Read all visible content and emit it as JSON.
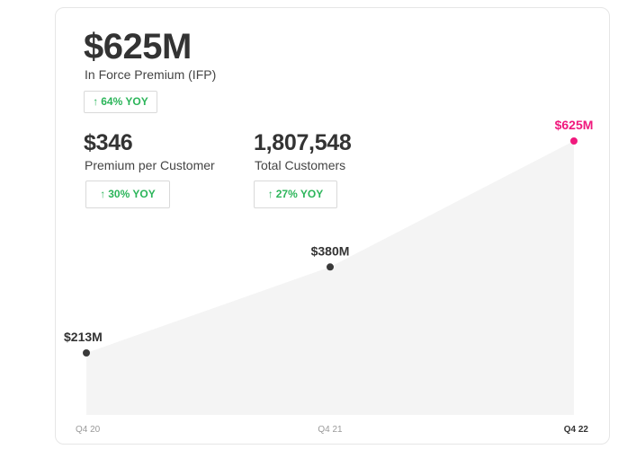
{
  "summary": {
    "ifp": {
      "value": "$625M",
      "label": "In Force Premium (IFP)",
      "change": "64% YOY"
    },
    "premium_per_customer": {
      "value": "$346",
      "label": "Premium per Customer",
      "change": "30% YOY"
    },
    "total_customers": {
      "value": "1,807,548",
      "label": "Total Customers",
      "change": "27% YOY"
    }
  },
  "colors": {
    "highlight": "#f0197d",
    "positive": "#2cb55a",
    "point": "#3a3a3a",
    "area": "#f4f4f4"
  },
  "icons": {
    "up": "up-arrow-icon"
  },
  "chart_data": {
    "type": "area",
    "categories": [
      "Q4 20",
      "Q4 21",
      "Q4 22"
    ],
    "values": [
      213,
      380,
      625
    ],
    "data_labels": [
      "$213M",
      "$380M",
      "$625M"
    ],
    "unit": "$M",
    "highlight_index": 2,
    "ylim": [
      0,
      625
    ],
    "grid": false,
    "title": "",
    "xlabel": "",
    "ylabel": ""
  }
}
